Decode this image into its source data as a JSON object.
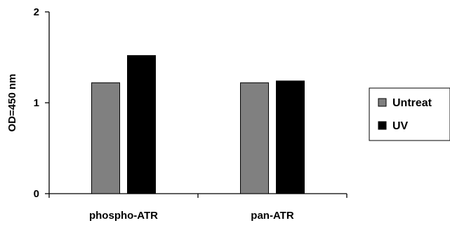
{
  "chart_data": {
    "type": "bar",
    "title": "",
    "xlabel": "",
    "ylabel": "OD=450 nm",
    "ylim": [
      0,
      2
    ],
    "yticks": [
      "0",
      "1",
      "2"
    ],
    "categories": [
      "phospho-ATR",
      "pan-ATR"
    ],
    "series": [
      {
        "name": "Untreat",
        "values": [
          1.22,
          1.22
        ],
        "color": "#808080"
      },
      {
        "name": "UV",
        "values": [
          1.52,
          1.24
        ],
        "color": "#000000"
      }
    ],
    "grid": false,
    "legend_position": "right"
  }
}
